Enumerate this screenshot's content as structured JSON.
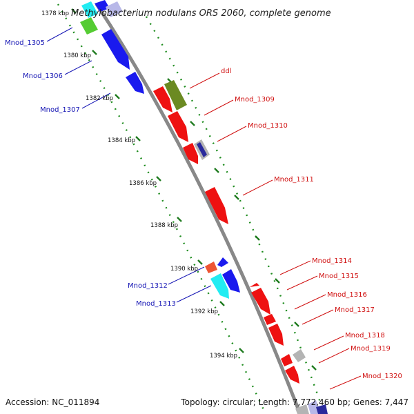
{
  "title": "Methylobacterium nodulans ORS 2060, complete genome",
  "footer": {
    "accession": "Accession: NC_011894",
    "summary": "Topology: circular; Length: 7,772,460 bp; Genes: 7,447"
  },
  "scale_labels": [
    "1378 kbp",
    "1380 kbp",
    "1382 kbp",
    "1384 kbp",
    "1386 kbp",
    "1388 kbp",
    "1390 kbp",
    "1392 kbp",
    "1394 kbp"
  ],
  "colors": {
    "backbone": "#888888",
    "ring_dots": "#1e8c1e",
    "minus_label": "#1515b4",
    "plus_label": "#d01010",
    "red": "#ee1111",
    "blue": "#1a1aee",
    "cyan": "#22ecf2",
    "green": "#55cc33",
    "olive": "#6b8a22",
    "gray": "#b4b4b4",
    "navy": "#2a2a9c",
    "lavender": "#b8b8e8",
    "orange": "#ee5533"
  },
  "genes_minus": [
    {
      "label": "Mnod_1305"
    },
    {
      "label": "Mnod_1306"
    },
    {
      "label": "Mnod_1307"
    },
    {
      "label": "Mnod_1312"
    },
    {
      "label": "Mnod_1313"
    }
  ],
  "genes_plus": [
    {
      "label": "ddl"
    },
    {
      "label": "Mnod_1309"
    },
    {
      "label": "Mnod_1310"
    },
    {
      "label": "Mnod_1311"
    },
    {
      "label": "Mnod_1314"
    },
    {
      "label": "Mnod_1315"
    },
    {
      "label": "Mnod_1316"
    },
    {
      "label": "Mnod_1317"
    },
    {
      "label": "Mnod_1318"
    },
    {
      "label": "Mnod_1319"
    },
    {
      "label": "Mnod_1320"
    }
  ]
}
